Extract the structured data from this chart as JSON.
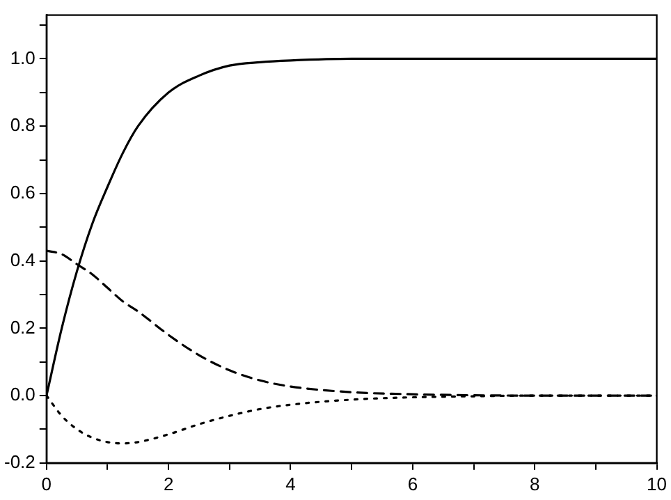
{
  "chart_data": {
    "type": "line",
    "xlim": [
      0,
      10
    ],
    "ylim": [
      -0.2,
      1.13
    ],
    "xticks": [
      0,
      {
        "value": 1,
        "label": null
      },
      2,
      {
        "value": 3,
        "label": null
      },
      4,
      {
        "value": 5,
        "label": null
      },
      6,
      {
        "value": 7,
        "label": null
      },
      8,
      {
        "value": 9,
        "label": null
      },
      10
    ],
    "yticks": [
      {
        "value": -0.2,
        "label": "-0.2"
      },
      {
        "value": -0.1,
        "label": null
      },
      {
        "value": 0,
        "label": "0.0"
      },
      {
        "value": 0.1,
        "label": null
      },
      {
        "value": 0.2,
        "label": "0.2"
      },
      {
        "value": 0.3,
        "label": null
      },
      {
        "value": 0.4,
        "label": "0.4"
      },
      {
        "value": 0.5,
        "label": null
      },
      {
        "value": 0.6,
        "label": "0.6"
      },
      {
        "value": 0.7,
        "label": null
      },
      {
        "value": 0.8,
        "label": "0.8"
      },
      {
        "value": 0.9,
        "label": null
      },
      {
        "value": 1,
        "label": "1.0"
      },
      {
        "value": 1.1,
        "label": null
      }
    ],
    "grid": false,
    "legend": false,
    "marker": "none",
    "x": [
      0,
      0.25,
      0.5,
      0.75,
      1,
      1.25,
      1.5,
      2,
      2.5,
      3,
      3.5,
      4,
      5,
      6,
      7,
      8,
      9,
      10
    ],
    "series": [
      {
        "color": "#000000",
        "line_style": "solid",
        "values": [
          0,
          0.2,
          0.37,
          0.51,
          0.62,
          0.72,
          0.8,
          0.9,
          0.95,
          0.98,
          0.99,
          0.995,
          1,
          1,
          1,
          1,
          1,
          1
        ]
      },
      {
        "color": "#000000",
        "line_style": "dashed",
        "values": [
          0.43,
          0.42,
          0.39,
          0.36,
          0.32,
          0.28,
          0.25,
          0.18,
          0.12,
          0.075,
          0.045,
          0.027,
          0.01,
          0.004,
          0.001,
          0,
          0,
          0
        ]
      },
      {
        "color": "#000000",
        "line_style": "dotted",
        "values": [
          0,
          -0.06,
          -0.1,
          -0.125,
          -0.138,
          -0.142,
          -0.138,
          -0.115,
          -0.085,
          -0.06,
          -0.04,
          -0.027,
          -0.012,
          -0.005,
          -0.002,
          0,
          0,
          0
        ]
      }
    ]
  }
}
